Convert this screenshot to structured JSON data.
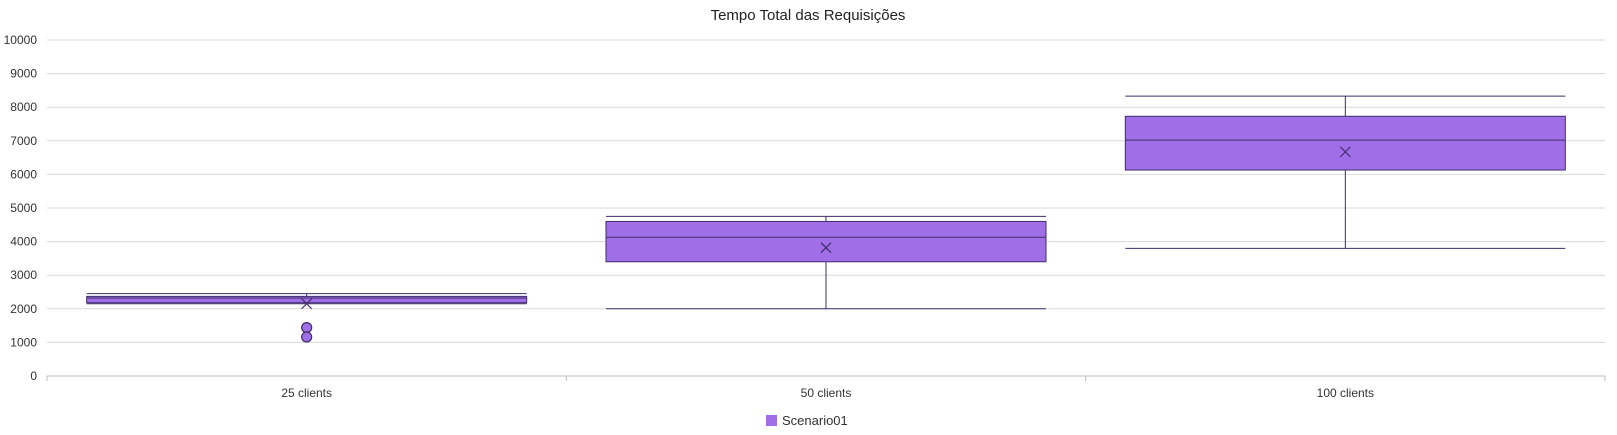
{
  "chart_data": {
    "type": "boxplot",
    "title": "Tempo Total das Requisições",
    "xlabel": "",
    "ylabel": "",
    "ylim": [
      0,
      10000
    ],
    "yticks": [
      0,
      1000,
      2000,
      3000,
      4000,
      5000,
      6000,
      7000,
      8000,
      9000,
      10000
    ],
    "grid": true,
    "legend_position": "bottom",
    "categories": [
      "25 clients",
      "50 clients",
      "100 clients"
    ],
    "series": [
      {
        "name": "Scenario01",
        "color": "#a06ee6",
        "stroke_color": "#3f2d6b",
        "boxes": [
          {
            "category": "25 clients",
            "min": 2150,
            "q1": 2180,
            "median": 2320,
            "q3": 2370,
            "max": 2450,
            "mean": 2150,
            "outliers": [
              1440,
              1160
            ]
          },
          {
            "category": "50 clients",
            "min": 2000,
            "q1": 3400,
            "median": 4130,
            "q3": 4600,
            "max": 4750,
            "mean": 3820,
            "outliers": []
          },
          {
            "category": "100 clients",
            "min": 3800,
            "q1": 6130,
            "median": 7020,
            "q3": 7730,
            "max": 8330,
            "mean": 6670,
            "outliers": []
          }
        ]
      }
    ]
  }
}
